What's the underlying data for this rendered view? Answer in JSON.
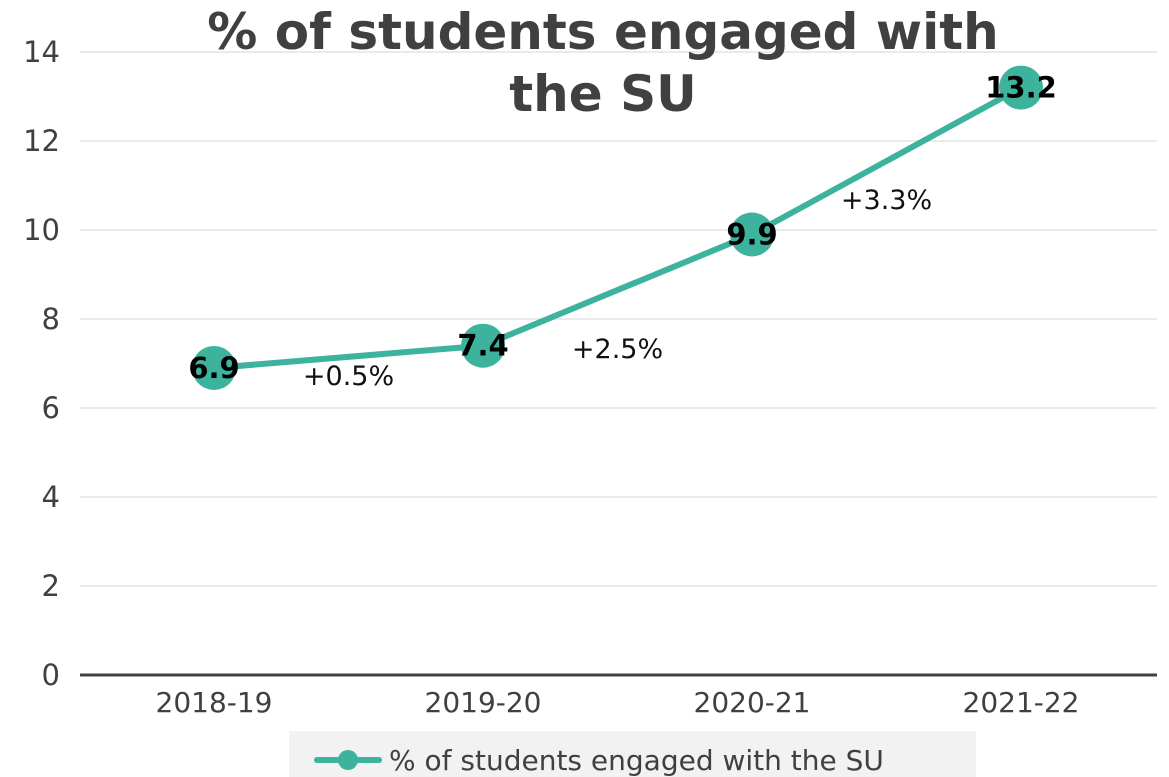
{
  "chart_data": {
    "type": "line",
    "title_lines": [
      "% of students engaged with",
      "the SU"
    ],
    "categories": [
      "2018-19",
      "2019-20",
      "2020-21",
      "2021-22"
    ],
    "series": [
      {
        "name": "% of students engaged with the SU",
        "values": [
          6.9,
          7.4,
          9.9,
          13.2
        ],
        "data_labels": [
          "6.9",
          "7.4",
          "9.9",
          "13.2"
        ],
        "color": "#3db39e"
      }
    ],
    "annotations": [
      "+0.5%",
      "+2.5%",
      "+3.3%"
    ],
    "yticks": [
      "0",
      "2",
      "4",
      "6",
      "8",
      "10",
      "12",
      "14"
    ],
    "ylim": [
      0,
      14
    ],
    "grid": true,
    "legend_position": "bottom"
  }
}
